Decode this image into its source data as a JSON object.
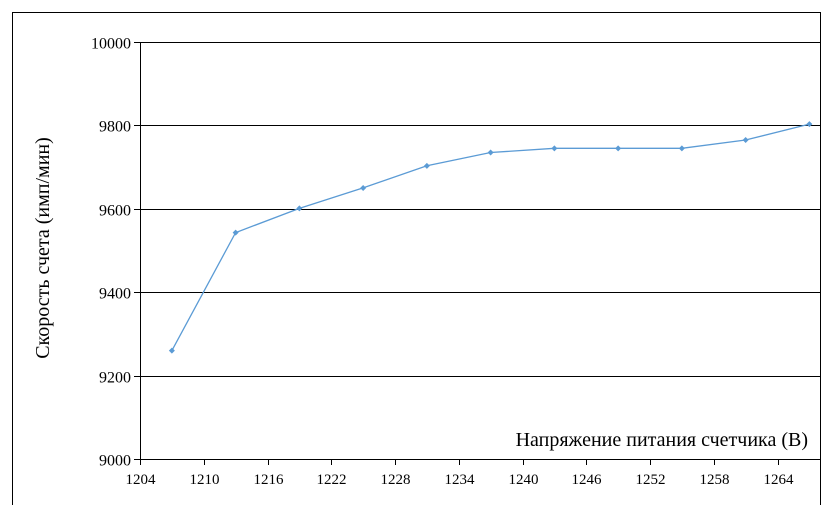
{
  "chart_data": {
    "type": "line",
    "title": "",
    "xlabel": "Напряжение питания счетчика (В)",
    "ylabel": "Скорость счета (имп/мин)",
    "xlim": [
      1204,
      1268
    ],
    "ylim": [
      9000,
      10000
    ],
    "x_ticks": [
      1204,
      1210,
      1216,
      1222,
      1228,
      1234,
      1240,
      1246,
      1252,
      1258,
      1264
    ],
    "y_ticks": [
      9000,
      9200,
      9400,
      9600,
      9800,
      10000
    ],
    "grid": true,
    "legend": "none",
    "series": [
      {
        "color": "#5b9bd5",
        "x": [
          1207,
          1213,
          1219,
          1225,
          1231,
          1237,
          1243,
          1249,
          1255,
          1261,
          1267
        ],
        "y": [
          9260,
          9543,
          9601,
          9650,
          9703,
          9735,
          9745,
          9745,
          9745,
          9765,
          9803
        ]
      }
    ]
  }
}
